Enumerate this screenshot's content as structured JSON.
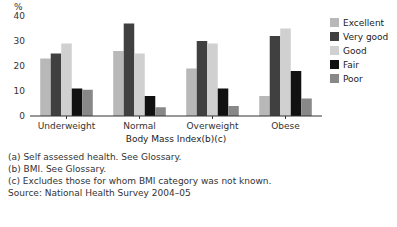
{
  "chart_data": {
    "type": "bar",
    "x_label": "Body Mass Index(b)(c)",
    "y_label": "%",
    "categories": [
      "Underweight",
      "Normal",
      "Overweight",
      "Obese"
    ],
    "series": [
      {
        "name": "Excellent",
        "color": "#b8b8b8",
        "values": [
          23,
          26,
          19,
          8
        ]
      },
      {
        "name": "Very good",
        "color": "#404040",
        "values": [
          25,
          37,
          30,
          32
        ]
      },
      {
        "name": "Good",
        "color": "#d0d0d0",
        "values": [
          29,
          25,
          29,
          35
        ]
      },
      {
        "name": "Fair",
        "color": "#111111",
        "values": [
          11,
          8,
          11,
          18
        ]
      },
      {
        "name": "Poor",
        "color": "#888888",
        "values": [
          10.5,
          3.5,
          4,
          7
        ]
      }
    ],
    "ylim": [
      0,
      40
    ],
    "yticks": [
      0,
      10,
      20,
      30,
      40
    ],
    "grid": false,
    "legend": "right",
    "annotations": [
      "(a) Self assessed health. See Glossary.",
      "(b) BMI. See Glossary.",
      "(c) Excludes those for whom BMI category was not known.",
      "Source: National Health Survey 2004–05"
    ]
  }
}
